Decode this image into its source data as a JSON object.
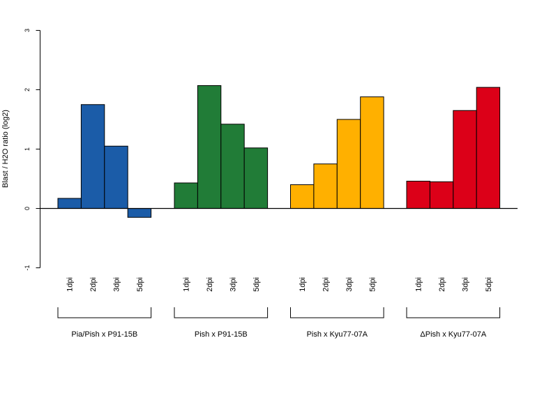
{
  "chart_data": {
    "type": "bar",
    "ylabel": "Blast / H2O ratio (log2)",
    "ylim": [
      -1,
      3
    ],
    "yticks": [
      -1,
      0,
      1,
      2,
      3
    ],
    "ytick_labels": [
      "-1",
      "0",
      "1",
      "2",
      "3"
    ],
    "grid": false,
    "legend": "none",
    "groups": [
      {
        "name": "Pia/Pish x P91-15B",
        "color": "#1B5CA8",
        "categories": [
          "1dpi",
          "2dpi",
          "3dpi",
          "5dpi"
        ],
        "values": [
          0.17,
          1.75,
          1.05,
          -0.15
        ]
      },
      {
        "name": "Pish x P91-15B",
        "color": "#217C37",
        "categories": [
          "1dpi",
          "2dpi",
          "3dpi",
          "5dpi"
        ],
        "values": [
          0.43,
          2.07,
          1.42,
          1.02
        ]
      },
      {
        "name": "Pish x Kyu77-07A",
        "color": "#FFB000",
        "categories": [
          "1dpi",
          "2dpi",
          "3dpi",
          "5dpi"
        ],
        "values": [
          0.4,
          0.75,
          1.5,
          1.88
        ]
      },
      {
        "name": "ΔPish x Kyu77-07A",
        "color": "#DC0018",
        "categories": [
          "1dpi",
          "2dpi",
          "3dpi",
          "5dpi"
        ],
        "values": [
          0.46,
          0.45,
          1.65,
          2.04
        ]
      }
    ]
  }
}
